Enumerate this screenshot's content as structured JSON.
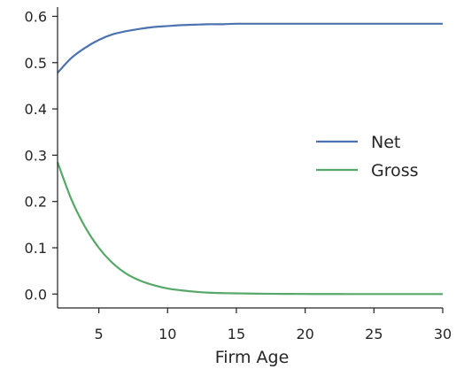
{
  "chart_data": {
    "type": "line",
    "title": "",
    "xlabel": "Firm Age",
    "ylabel": "",
    "xlim": [
      2,
      30
    ],
    "ylim": [
      -0.03,
      0.62
    ],
    "xticks": [
      5,
      10,
      15,
      20,
      25,
      30
    ],
    "yticks": [
      0.0,
      0.1,
      0.2,
      0.3,
      0.4,
      0.5,
      0.6
    ],
    "ytick_labels": [
      "0.0",
      "0.1",
      "0.2",
      "0.3",
      "0.4",
      "0.5",
      "0.6"
    ],
    "grid": false,
    "legend_position": "center-right",
    "x": [
      2,
      3,
      4,
      5,
      6,
      7,
      8,
      9,
      10,
      11,
      12,
      13,
      14,
      15,
      16,
      17,
      18,
      19,
      20,
      21,
      22,
      23,
      24,
      25,
      26,
      27,
      28,
      29,
      30
    ],
    "series": [
      {
        "name": "Net",
        "color": "#4c72b0",
        "values": [
          0.478,
          0.51,
          0.532,
          0.549,
          0.561,
          0.568,
          0.573,
          0.577,
          0.579,
          0.581,
          0.582,
          0.583,
          0.583,
          0.584,
          0.584,
          0.584,
          0.584,
          0.584,
          0.584,
          0.584,
          0.584,
          0.584,
          0.584,
          0.584,
          0.584,
          0.584,
          0.584,
          0.584,
          0.584
        ]
      },
      {
        "name": "Gross",
        "color": "#55a868",
        "values": [
          0.285,
          0.205,
          0.145,
          0.1,
          0.067,
          0.044,
          0.029,
          0.019,
          0.012,
          0.008,
          0.005,
          0.003,
          0.002,
          0.0015,
          0.001,
          0.0007,
          0.0005,
          0.0003,
          0.0002,
          0.0001,
          0.0001,
          0.0,
          0.0,
          0.0,
          0.0,
          0.0,
          0.0,
          0.0,
          0.0
        ]
      }
    ]
  }
}
